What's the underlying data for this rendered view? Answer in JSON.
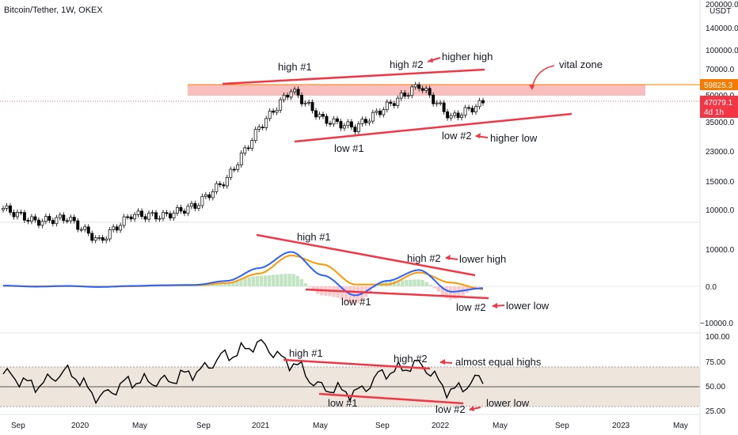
{
  "header": {
    "title": "Bitcoin/Tether, 1W, OKEX"
  },
  "price_axis": {
    "unit": "USDT",
    "ticks": [
      "200000.0",
      "140000.0",
      "100000.0",
      "70000.0",
      "50000.0",
      "35000.0",
      "23000.0",
      "15000.0",
      "10000.0"
    ],
    "tags": [
      {
        "label": "59825.3",
        "color": "#f57c00"
      },
      {
        "label": "47079.1",
        "color": "#f23645"
      },
      {
        "label": "4d 1h",
        "color": "#f23645"
      }
    ]
  },
  "macd_axis": {
    "ticks": [
      "10000.0",
      "0.0",
      "−10000.0"
    ]
  },
  "rsi_axis": {
    "ticks": [
      "100.00",
      "75.00",
      "50.00",
      "25.00"
    ]
  },
  "time_axis": {
    "ticks": [
      "Sep",
      "2020",
      "May",
      "Sep",
      "2021",
      "May",
      "Sep",
      "2022",
      "May",
      "Sep",
      "2023",
      "May"
    ]
  },
  "annotations": {
    "price": [
      "high #1",
      "high #2",
      "higher high",
      "vital zone",
      "low #1",
      "low #2",
      "higher low"
    ],
    "macd": [
      "high #1",
      "high #2",
      "lower high",
      "low #1",
      "low #2",
      "lower low"
    ],
    "rsi": [
      "high #1",
      "high #2",
      "almost equal highs",
      "low #1",
      "low #2",
      "lower low"
    ]
  },
  "colors": {
    "up": "#26a69a",
    "down": "#ef5350",
    "trendline": "#f23645",
    "zone": "#f8b4b4",
    "macd_line": "#2962ff",
    "signal_line": "#ff9800",
    "hist_pos": "#b7dfb9",
    "hist_neg": "#f7c1c1",
    "rsi_band": "#e7dccf"
  },
  "chart_data": [
    {
      "type": "candlestick",
      "title": "Bitcoin/Tether, 1W, OKEX",
      "ylabel": "USDT",
      "scale": "log",
      "x": [
        "2019-09",
        "2019-11",
        "2020-01",
        "2020-03",
        "2020-05",
        "2020-07",
        "2020-09",
        "2020-11",
        "2021-01",
        "2021-03",
        "2021-05",
        "2021-07",
        "2021-09",
        "2021-11",
        "2022-01",
        "2022-03"
      ],
      "close": [
        10300,
        8500,
        9000,
        6400,
        9400,
        9200,
        10700,
        15800,
        33000,
        57000,
        37000,
        33000,
        45000,
        61000,
        38000,
        47079
      ],
      "levels": {
        "vital_zone_mid": 59825.3,
        "last": 47079.1
      }
    },
    {
      "type": "line",
      "title": "MACD",
      "series": [
        {
          "values": [
            200,
            -100,
            100,
            -200,
            100,
            300,
            400,
            1500,
            5000,
            9500,
            3000,
            -2500,
            1500,
            4500,
            -1500,
            -500
          ]
        },
        {
          "values": [
            100,
            0,
            50,
            -100,
            0,
            200,
            300,
            900,
            3500,
            8500,
            6000,
            500,
            500,
            3800,
            1000,
            -800
          ]
        }
      ],
      "ylim": [
        -11000,
        11000
      ]
    },
    {
      "type": "line",
      "title": "RSI",
      "series": [
        {
          "values": [
            60,
            48,
            62,
            36,
            52,
            52,
            62,
            80,
            92,
            72,
            45,
            40,
            62,
            70,
            42,
            55
          ]
        }
      ],
      "ylim": [
        25,
        100
      ],
      "band": [
        30,
        70
      ]
    }
  ]
}
